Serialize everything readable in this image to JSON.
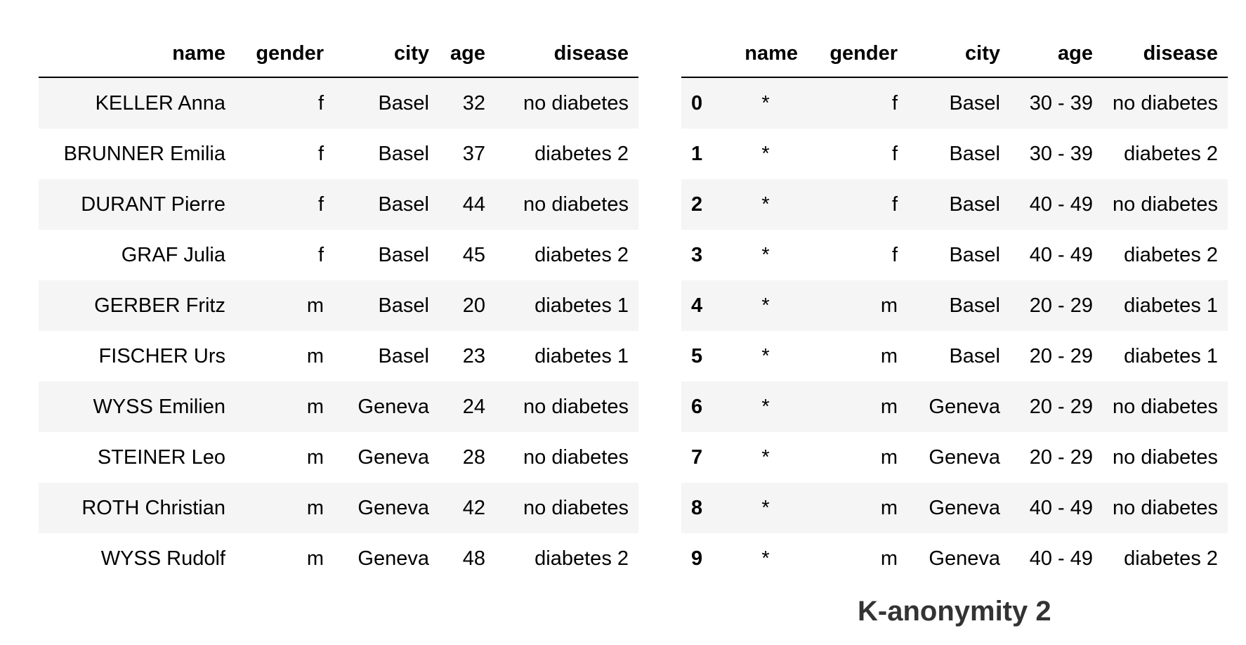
{
  "original_table": {
    "columns": [
      "name",
      "gender",
      "city",
      "age",
      "disease"
    ],
    "rows": [
      [
        "KELLER Anna",
        "f",
        "Basel",
        "32",
        "no diabetes"
      ],
      [
        "BRUNNER Emilia",
        "f",
        "Basel",
        "37",
        "diabetes 2"
      ],
      [
        "DURANT Pierre",
        "f",
        "Basel",
        "44",
        "no diabetes"
      ],
      [
        "GRAF Julia",
        "f",
        "Basel",
        "45",
        "diabetes 2"
      ],
      [
        "GERBER Fritz",
        "m",
        "Basel",
        "20",
        "diabetes 1"
      ],
      [
        "FISCHER Urs",
        "m",
        "Basel",
        "23",
        "diabetes 1"
      ],
      [
        "WYSS Emilien",
        "m",
        "Geneva",
        "24",
        "no diabetes"
      ],
      [
        "STEINER Leo",
        "m",
        "Geneva",
        "28",
        "no diabetes"
      ],
      [
        "ROTH Christian",
        "m",
        "Geneva",
        "42",
        "no diabetes"
      ],
      [
        "WYSS Rudolf",
        "m",
        "Geneva",
        "48",
        "diabetes 2"
      ]
    ]
  },
  "anonymized_table": {
    "columns": [
      "",
      "name",
      "gender",
      "city",
      "age",
      "disease"
    ],
    "rows": [
      [
        "0",
        "*",
        "f",
        "Basel",
        "30 - 39",
        "no diabetes"
      ],
      [
        "1",
        "*",
        "f",
        "Basel",
        "30 - 39",
        "diabetes 2"
      ],
      [
        "2",
        "*",
        "f",
        "Basel",
        "40 - 49",
        "no diabetes"
      ],
      [
        "3",
        "*",
        "f",
        "Basel",
        "40 - 49",
        "diabetes 2"
      ],
      [
        "4",
        "*",
        "m",
        "Basel",
        "20 - 29",
        "diabetes 1"
      ],
      [
        "5",
        "*",
        "m",
        "Basel",
        "20 - 29",
        "diabetes 1"
      ],
      [
        "6",
        "*",
        "m",
        "Geneva",
        "20 - 29",
        "no diabetes"
      ],
      [
        "7",
        "*",
        "m",
        "Geneva",
        "20 - 29",
        "no diabetes"
      ],
      [
        "8",
        "*",
        "m",
        "Geneva",
        "40 - 49",
        "no diabetes"
      ],
      [
        "9",
        "*",
        "m",
        "Geneva",
        "40 - 49",
        "diabetes 2"
      ]
    ]
  },
  "caption": "K-anonymity 2"
}
